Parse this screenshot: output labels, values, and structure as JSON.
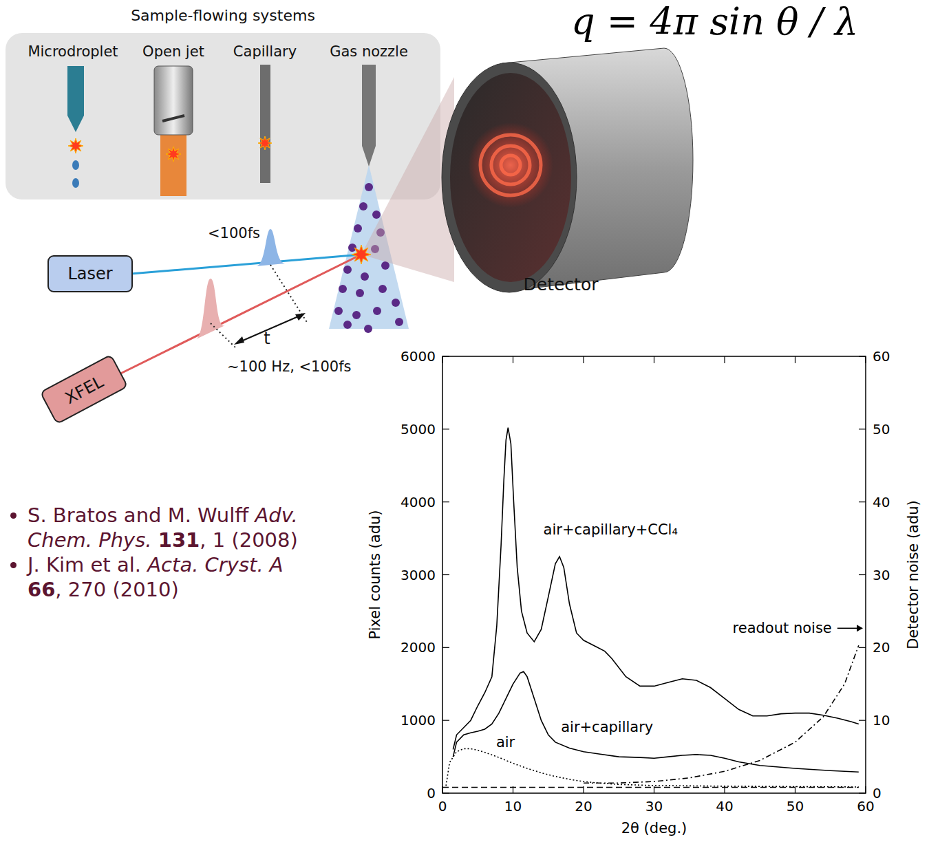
{
  "formula": "q = 4π sin θ / λ",
  "diagram": {
    "title": "Sample-flowing systems",
    "samples": [
      "Microdroplet",
      "Open jet",
      "Capillary",
      "Gas nozzle"
    ],
    "laser": "Laser",
    "xfel": "XFEL",
    "laser_pulse": "<100fs",
    "xfel_pulse": "~100 Hz, <100fs",
    "delay": "t",
    "detector": "Detector"
  },
  "references": [
    {
      "authors": "S. Bratos and M. Wulff",
      "journal": "Adv. Chem. Phys.",
      "volume": "131",
      "pages": "1",
      "year": "(2008)"
    },
    {
      "authors": "J. Kim et al.",
      "journal": "Acta. Cryst. A",
      "volume": "66",
      "pages": "270",
      "year": "(2010)"
    }
  ],
  "chart_data": {
    "type": "line",
    "xlabel": "2θ (deg.)",
    "ylabel": "Pixel counts (adu)",
    "y2label": "Detector noise (adu)",
    "xlim": [
      0,
      60
    ],
    "ylim": [
      0,
      6000
    ],
    "y2lim": [
      0,
      60
    ],
    "xticks": [
      0,
      10,
      20,
      30,
      40,
      50,
      60
    ],
    "yticks": [
      0,
      1000,
      2000,
      3000,
      4000,
      5000,
      6000
    ],
    "y2ticks": [
      0,
      10,
      20,
      30,
      40,
      50,
      60
    ],
    "series": [
      {
        "name": "air+capillary+CCl₄",
        "color": "#000000",
        "line_style": "solid",
        "x": [
          1.5,
          2,
          3,
          4,
          5,
          6,
          7,
          7.7,
          8.3,
          8.7,
          9,
          9.3,
          9.7,
          10.1,
          10.6,
          11.2,
          12,
          13,
          14,
          15,
          16,
          16.6,
          17.2,
          18,
          19,
          20,
          22,
          23,
          24,
          26,
          28,
          30,
          32,
          34,
          36,
          38,
          40,
          42,
          44,
          46,
          48,
          50,
          52,
          54,
          56,
          58,
          59
        ],
        "values": [
          600,
          800,
          900,
          1000,
          1200,
          1380,
          1600,
          2300,
          3400,
          4300,
          4850,
          5020,
          4800,
          4000,
          3100,
          2500,
          2200,
          2080,
          2250,
          2700,
          3150,
          3250,
          3100,
          2600,
          2200,
          2100,
          2000,
          1950,
          1850,
          1600,
          1470,
          1470,
          1520,
          1570,
          1550,
          1450,
          1300,
          1150,
          1060,
          1060,
          1090,
          1100,
          1100,
          1070,
          1030,
          980,
          950
        ]
      },
      {
        "name": "air+capillary",
        "color": "#000000",
        "line_style": "solid",
        "x": [
          1.5,
          2,
          3,
          4,
          5,
          6,
          7,
          8,
          9,
          10,
          11,
          11.5,
          12,
          13,
          14,
          15,
          16,
          18,
          20,
          22,
          25,
          28,
          30,
          32,
          34,
          36,
          38,
          40,
          42,
          45,
          50,
          55,
          59
        ],
        "values": [
          500,
          700,
          800,
          830,
          850,
          880,
          950,
          1100,
          1300,
          1500,
          1650,
          1670,
          1600,
          1300,
          1000,
          800,
          700,
          620,
          570,
          540,
          500,
          490,
          480,
          500,
          520,
          530,
          520,
          480,
          430,
          380,
          340,
          310,
          290
        ]
      },
      {
        "name": "air",
        "color": "#000000",
        "line_style": "dotted",
        "x": [
          0.5,
          1,
          2,
          3,
          4,
          5,
          6,
          8,
          10,
          12,
          14,
          16,
          18,
          20,
          22,
          25,
          30,
          35,
          40,
          50,
          59
        ],
        "values": [
          100,
          420,
          570,
          610,
          610,
          590,
          560,
          490,
          410,
          340,
          280,
          230,
          190,
          160,
          140,
          120,
          105,
          100,
          95,
          90,
          85
        ]
      },
      {
        "name": "readout noise",
        "color": "#000000",
        "line_style": "dashdot",
        "axis": "y2",
        "x": [
          20,
          25,
          30,
          35,
          40,
          45,
          50,
          54,
          57,
          59
        ],
        "values": [
          1.4,
          1.4,
          1.6,
          2.1,
          3.0,
          4.5,
          7.0,
          10.5,
          15,
          20.3
        ]
      },
      {
        "color": "#000000",
        "line_style": "dashed",
        "axis": "y2",
        "x": [
          0,
          59
        ],
        "values": [
          0.8,
          0.8
        ]
      }
    ]
  }
}
